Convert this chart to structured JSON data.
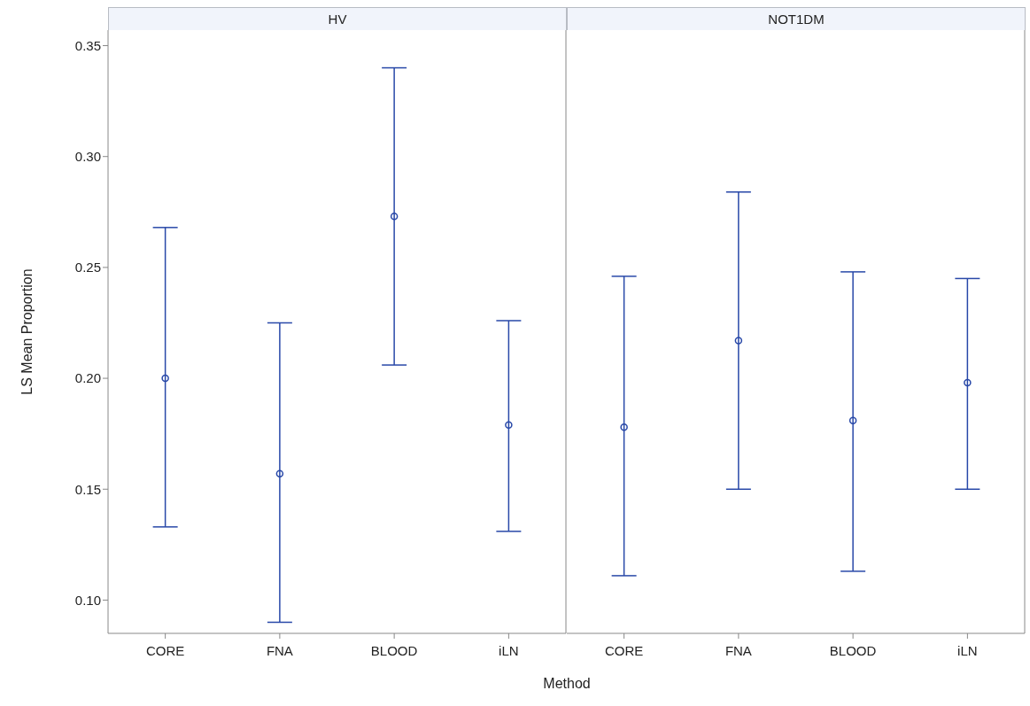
{
  "chart_data": [
    {
      "type": "scatter",
      "title": "HV",
      "ylabel": "LS Mean Proportion",
      "xlabel": "Method",
      "categories": [
        "CORE",
        "FNA",
        "BLOOD",
        "iLN"
      ],
      "series": [
        {
          "color": "#2848a8",
          "values": [
            0.2,
            0.157,
            0.273,
            0.179
          ],
          "errors": [
            [
              0.133,
              0.268
            ],
            [
              0.09,
              0.225
            ],
            [
              0.206,
              0.34
            ],
            [
              0.131,
              0.226
            ]
          ]
        }
      ],
      "ylim": [
        0.085,
        0.357
      ],
      "yticks": [
        {
          "value": 0.1,
          "label": "0.10"
        },
        {
          "value": 0.15,
          "label": "0.15"
        },
        {
          "value": 0.2,
          "label": "0.20"
        },
        {
          "value": 0.25,
          "label": "0.25"
        },
        {
          "value": 0.3,
          "label": "0.30"
        },
        {
          "value": 0.35,
          "label": "0.35"
        }
      ],
      "marker": "circle",
      "grid": false,
      "legend": false
    },
    {
      "type": "scatter",
      "title": "NOT1DM",
      "categories": [
        "CORE",
        "FNA",
        "BLOOD",
        "iLN"
      ],
      "series": [
        {
          "color": "#2848a8",
          "values": [
            0.178,
            0.217,
            0.181,
            0.198
          ],
          "errors": [
            [
              0.111,
              0.246
            ],
            [
              0.15,
              0.284
            ],
            [
              0.113,
              0.248
            ],
            [
              0.15,
              0.245
            ]
          ]
        }
      ],
      "ylim": [
        0.085,
        0.357
      ],
      "marker": "circle",
      "grid": false,
      "legend": false,
      "tick_labels": "x"
    }
  ]
}
